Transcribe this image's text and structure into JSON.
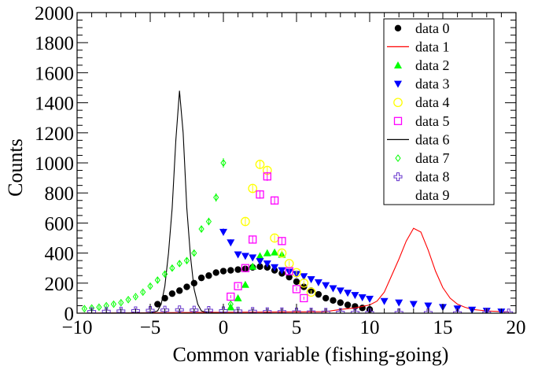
{
  "chart_data": {
    "type": "scatter",
    "title": "",
    "xlabel": "Common variable (fishing-going)",
    "ylabel": "Counts",
    "xlim": [
      -10,
      20
    ],
    "ylim": [
      0,
      2000
    ],
    "x_ticks": [
      "−10",
      "−5",
      "0",
      "5",
      "10",
      "15",
      "20"
    ],
    "y_ticks": [
      "0",
      "200",
      "400",
      "600",
      "800",
      "1000",
      "1200",
      "1400",
      "1600",
      "1800",
      "2000"
    ],
    "grid": false,
    "legend_position": "top-right",
    "series": [
      {
        "name": "data 0",
        "style": "points",
        "marker": "filled-circle",
        "color": "#000000",
        "x": [
          -4.5,
          -4,
          -3.5,
          -3,
          -2.5,
          -2,
          -1.5,
          -1,
          -0.5,
          0,
          0.5,
          1,
          1.5,
          2,
          2.5,
          3,
          3.5,
          4,
          4.5,
          5,
          5.5,
          6,
          6.5,
          7,
          7.5,
          8,
          8.5,
          9,
          9.5,
          10
        ],
        "y": [
          60,
          100,
          130,
          150,
          175,
          200,
          235,
          250,
          270,
          280,
          285,
          290,
          295,
          305,
          310,
          305,
          285,
          265,
          240,
          210,
          175,
          150,
          125,
          100,
          85,
          70,
          55,
          45,
          35,
          25
        ]
      },
      {
        "name": "data 1",
        "style": "line",
        "color": "#ff0000",
        "x": [
          -10,
          7,
          8,
          9,
          10,
          10.5,
          11,
          11.5,
          12,
          12.5,
          13,
          13.5,
          14,
          14.5,
          15,
          15.5,
          16,
          16.5,
          17,
          18,
          19.5
        ],
        "y": [
          0,
          10,
          25,
          35,
          55,
          80,
          140,
          250,
          360,
          480,
          565,
          540,
          420,
          280,
          170,
          100,
          60,
          40,
          25,
          15,
          8
        ]
      },
      {
        "name": "data 2",
        "style": "points",
        "marker": "triangle-up",
        "color": "#00ff00",
        "x": [
          0.5,
          1,
          1.5,
          2,
          2.5,
          3,
          3.5,
          4
        ],
        "y": [
          40,
          100,
          190,
          310,
          380,
          400,
          405,
          390
        ]
      },
      {
        "name": "data 3",
        "style": "points",
        "marker": "triangle-down",
        "color": "#0000ff",
        "x": [
          0,
          0.5,
          1,
          1.5,
          2,
          2.5,
          3,
          3.5,
          4,
          4.5,
          5,
          5.5,
          6,
          6.5,
          7,
          7.5,
          8,
          8.5,
          9,
          9.5,
          10,
          11,
          12,
          13,
          14,
          15,
          16,
          17,
          18,
          19
        ],
        "y": [
          540,
          470,
          390,
          380,
          370,
          345,
          330,
          305,
          285,
          275,
          260,
          245,
          225,
          205,
          185,
          165,
          150,
          135,
          120,
          105,
          95,
          80,
          70,
          60,
          50,
          40,
          30,
          22,
          15,
          10
        ]
      },
      {
        "name": "data 4",
        "style": "points",
        "marker": "open-circle",
        "color": "#ffff00",
        "x": [
          1.5,
          2,
          2.5,
          3,
          3.5,
          4,
          4.5,
          5,
          5.5,
          6
        ],
        "y": [
          610,
          830,
          990,
          950,
          500,
          400,
          330,
          270,
          200,
          140
        ]
      },
      {
        "name": "data 5",
        "style": "points",
        "marker": "open-square",
        "color": "#ff00ff",
        "x": [
          0.5,
          1,
          1.5,
          2,
          2.5,
          3,
          3.5,
          4,
          4.5,
          5,
          5.5
        ],
        "y": [
          110,
          180,
          300,
          490,
          790,
          910,
          750,
          480,
          280,
          160,
          100
        ]
      },
      {
        "name": "data 6",
        "style": "line",
        "color": "#000000",
        "x": [
          -10,
          -5,
          -4.5,
          -4.25,
          -4,
          -3.75,
          -3.5,
          -3.25,
          -3,
          -2.75,
          -2.5,
          -2.25,
          -2,
          -1.75,
          -1.5,
          -1,
          0,
          20
        ],
        "y": [
          0,
          2,
          15,
          60,
          180,
          400,
          700,
          1150,
          1480,
          1200,
          700,
          380,
          160,
          60,
          15,
          2,
          0,
          0
        ]
      },
      {
        "name": "data 7",
        "style": "points",
        "marker": "open-diamond",
        "color": "#00ff00",
        "x": [
          -9.5,
          -9,
          -8.5,
          -8,
          -7.5,
          -7,
          -6.5,
          -6,
          -5.5,
          -5,
          -4.5,
          -4,
          -3.5,
          -3,
          -2.5,
          -2,
          -1.5,
          -1,
          -0.5,
          0,
          0.5
        ],
        "y": [
          30,
          35,
          40,
          50,
          60,
          70,
          90,
          110,
          140,
          180,
          220,
          260,
          300,
          330,
          350,
          400,
          560,
          610,
          770,
          1000,
          60
        ]
      },
      {
        "name": "data 8",
        "style": "points",
        "marker": "open-cross",
        "color": "#6633cc",
        "x": [
          -9,
          -8,
          -7,
          -6,
          -5,
          -4,
          -3,
          -2,
          -1,
          0,
          1,
          2,
          3,
          4,
          5,
          6,
          7,
          8,
          9,
          10,
          12,
          14,
          16,
          18,
          19.5
        ],
        "y": [
          10,
          12,
          14,
          16,
          18,
          20,
          22,
          20,
          18,
          16,
          14,
          12,
          10,
          9,
          8,
          7,
          6,
          5,
          4,
          4,
          3,
          3,
          2,
          2,
          1
        ]
      },
      {
        "name": "data 9",
        "style": "none",
        "color": "#ffffff",
        "x": [],
        "y": []
      }
    ]
  }
}
